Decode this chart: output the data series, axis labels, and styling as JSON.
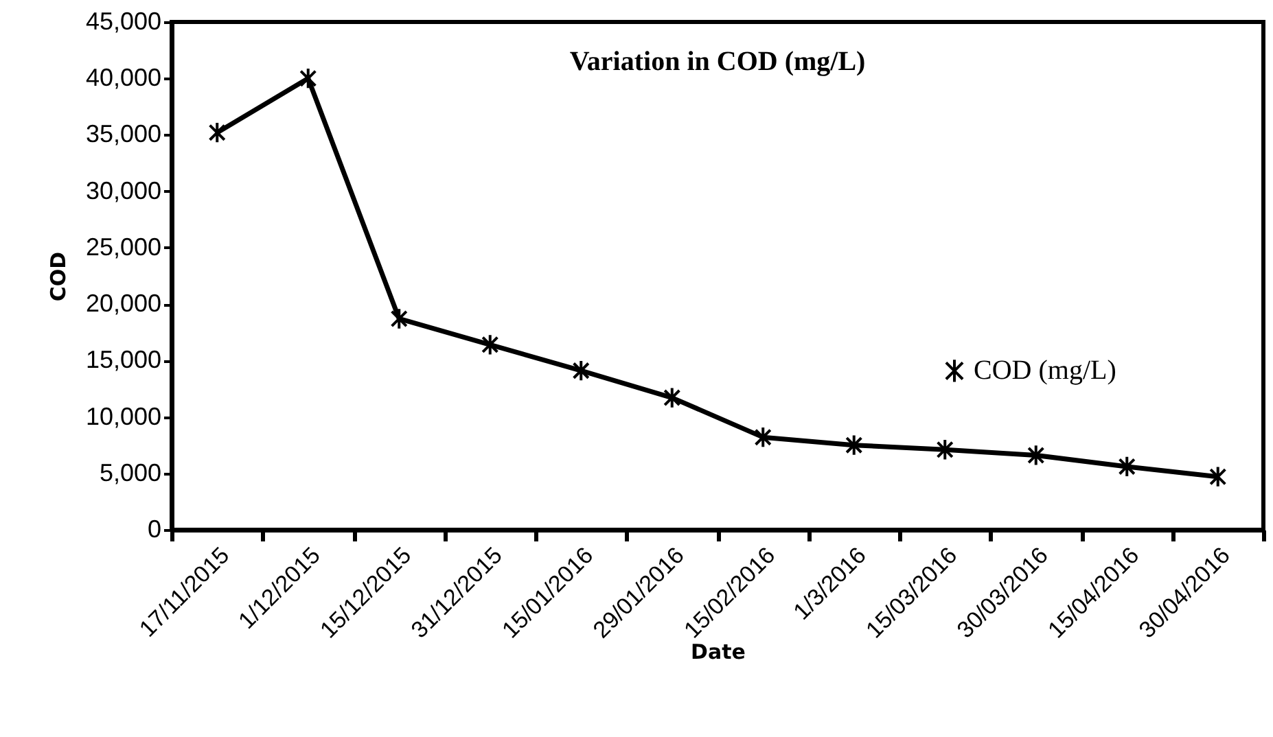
{
  "chart_data": {
    "type": "line",
    "title": "Variation in COD (mg/L)",
    "xlabel": "Date",
    "ylabel": "COD",
    "categories": [
      "17/11/2015",
      "1/12/2015",
      "15/12/2015",
      "31/12/2015",
      "15/01/2016",
      "29/01/2016",
      "15/02/2016",
      "1/3/2016",
      "15/03/2016",
      "30/03/2016",
      "15/04/2016",
      "30/04/2016"
    ],
    "series": [
      {
        "name": "COD (mg/L)",
        "color": "#000000",
        "values": [
          35200,
          40000,
          18700,
          16400,
          14100,
          11700,
          8200,
          7500,
          7100,
          6600,
          5600,
          4700
        ]
      }
    ],
    "ylim": [
      0,
      45000
    ],
    "yticks": [
      0,
      {
        "value": 5000,
        "label": "5,000"
      },
      {
        "value": 10000,
        "label": "10,000"
      },
      {
        "value": 15000,
        "label": "15,000"
      },
      {
        "value": 20000,
        "label": "20,000"
      },
      {
        "value": 25000,
        "label": "25,000"
      },
      {
        "value": 30000,
        "label": "30,000"
      },
      {
        "value": 35000,
        "label": "35,000"
      },
      {
        "value": 40000,
        "label": "40,000"
      },
      {
        "value": 45000,
        "label": "45,000"
      }
    ],
    "grid": false,
    "legend": "right",
    "marker": "cross",
    "line_style": "solid"
  }
}
